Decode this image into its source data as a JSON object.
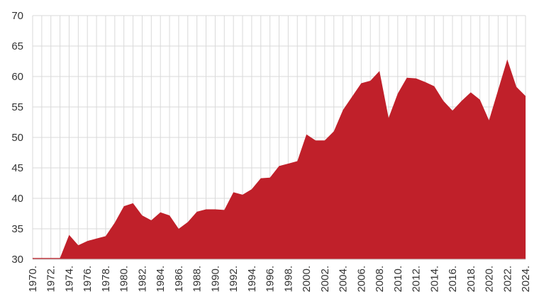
{
  "chart_data": {
    "type": "area",
    "title": "",
    "xlabel": "",
    "ylabel": "",
    "ylim": [
      30,
      70
    ],
    "yticks": [
      30,
      35,
      40,
      45,
      50,
      55,
      60,
      65,
      70
    ],
    "grid": true,
    "x_tick_labels": [
      "1970.",
      "1972.",
      "1974.",
      "1976.",
      "1978.",
      "1980.",
      "1982.",
      "1984.",
      "1986.",
      "1988.",
      "1990.",
      "1992.",
      "1994.",
      "1996.",
      "1998.",
      "2000.",
      "2002.",
      "2004.",
      "2006.",
      "2008.",
      "2010.",
      "2012.",
      "2014.",
      "2016.",
      "2018.",
      "2020.",
      "2022.",
      "2024."
    ],
    "x": [
      1970,
      1971,
      1972,
      1973,
      1974,
      1975,
      1976,
      1977,
      1978,
      1979,
      1980,
      1981,
      1982,
      1983,
      1984,
      1985,
      1986,
      1987,
      1988,
      1989,
      1990,
      1991,
      1992,
      1993,
      1994,
      1995,
      1996,
      1997,
      1998,
      1999,
      2000,
      2001,
      2002,
      2003,
      2004,
      2005,
      2006,
      2007,
      2008,
      2009,
      2010,
      2011,
      2012,
      2013,
      2014,
      2015,
      2016,
      2017,
      2018,
      2019,
      2020,
      2021,
      2022,
      2023,
      2024
    ],
    "series": [
      {
        "color": "#c0202a",
        "values": [
          30.2,
          30.2,
          30.2,
          30.2,
          34.0,
          32.3,
          33.0,
          33.4,
          33.8,
          36.0,
          38.7,
          39.2,
          37.2,
          36.4,
          37.7,
          37.2,
          35.0,
          36.1,
          37.8,
          38.2,
          38.2,
          38.1,
          41.0,
          40.6,
          41.5,
          43.3,
          43.4,
          45.3,
          45.7,
          46.1,
          50.5,
          49.5,
          49.5,
          51.0,
          54.5,
          56.7,
          58.9,
          59.3,
          60.9,
          53.2,
          57.2,
          59.8,
          59.7,
          59.1,
          58.4,
          56.0,
          54.4,
          56.0,
          57.4,
          56.2,
          52.8,
          57.8,
          62.8,
          58.3,
          56.8
        ]
      }
    ]
  }
}
